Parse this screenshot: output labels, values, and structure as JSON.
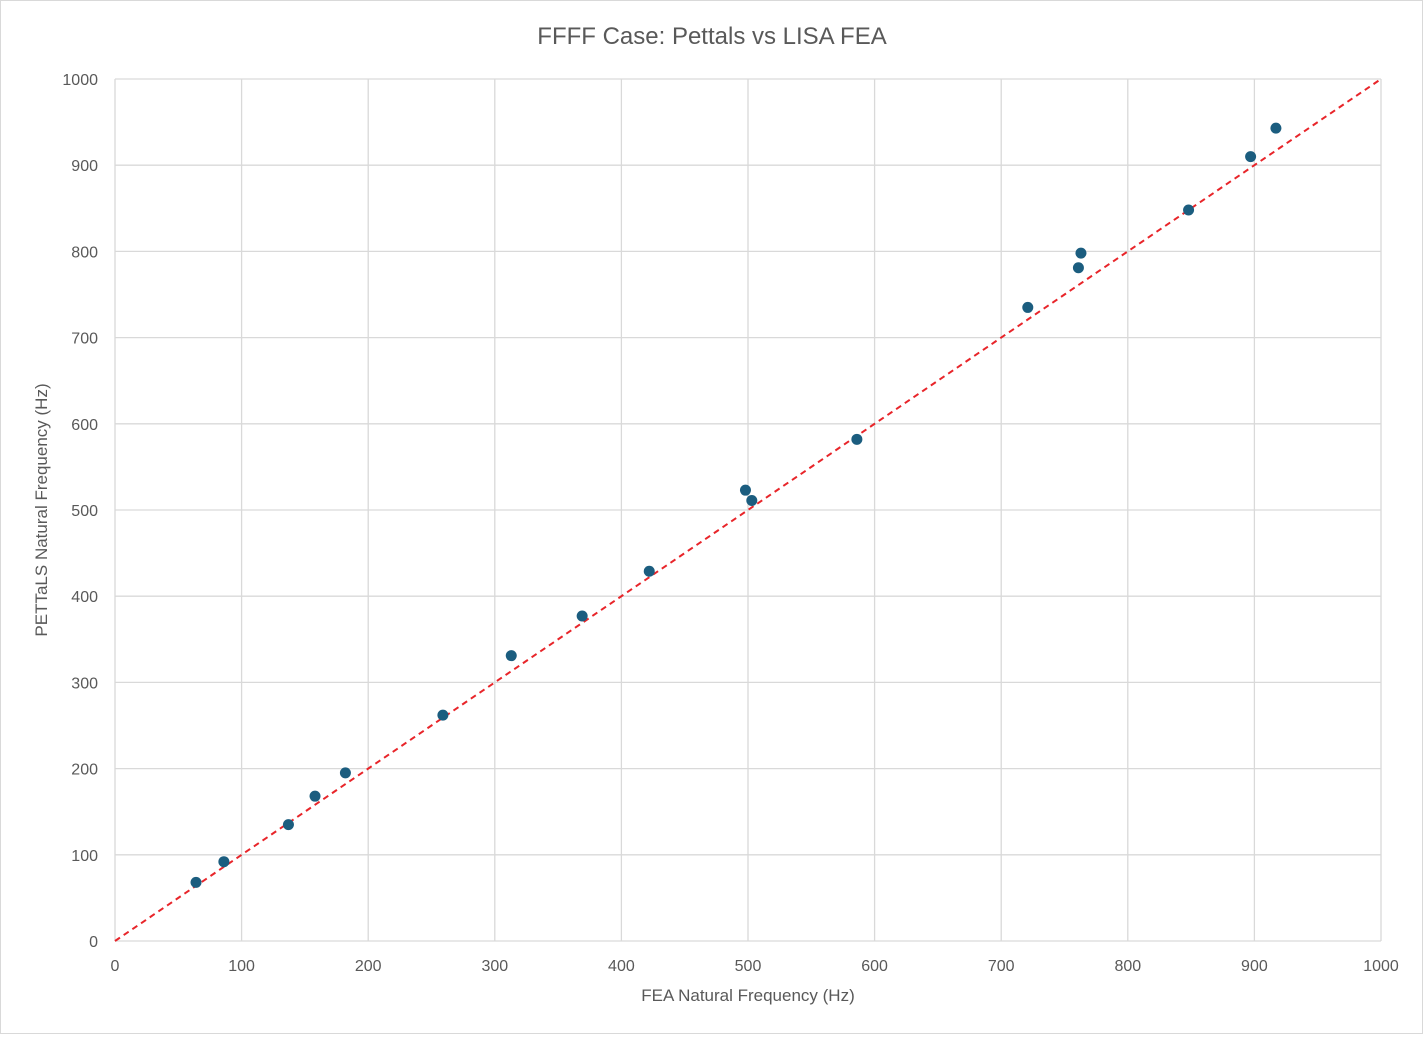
{
  "chart_data": {
    "type": "scatter",
    "title": "FFFF Case: Pettals vs LISA FEA",
    "xlabel": "FEA Natural Frequency (Hz)",
    "ylabel": "PETTaLS Natural Frequency (Hz)",
    "xlim": [
      0,
      1000
    ],
    "ylim": [
      0,
      1000
    ],
    "xticks": [
      "0",
      "100",
      "200",
      "300",
      "400",
      "500",
      "600",
      "700",
      "800",
      "900",
      "1000"
    ],
    "yticks": [
      "0",
      "100",
      "200",
      "300",
      "400",
      "500",
      "600",
      "700",
      "800",
      "900",
      "1000"
    ],
    "grid": true,
    "legend": "none",
    "series": [
      {
        "color": "#1b5d7f",
        "x": [
          64,
          86,
          137,
          158,
          182,
          259,
          313,
          369,
          422,
          498,
          503,
          586,
          721,
          761,
          763,
          848,
          897,
          917
        ],
        "y": [
          68,
          92,
          135,
          168,
          195,
          262,
          331,
          377,
          429,
          523,
          511,
          582,
          735,
          781,
          798,
          848,
          910,
          943
        ]
      }
    ],
    "reference_line": {
      "x": [
        0,
        1000
      ],
      "y": [
        0,
        1000
      ],
      "color": "#e8252a",
      "style": "dashed"
    }
  }
}
